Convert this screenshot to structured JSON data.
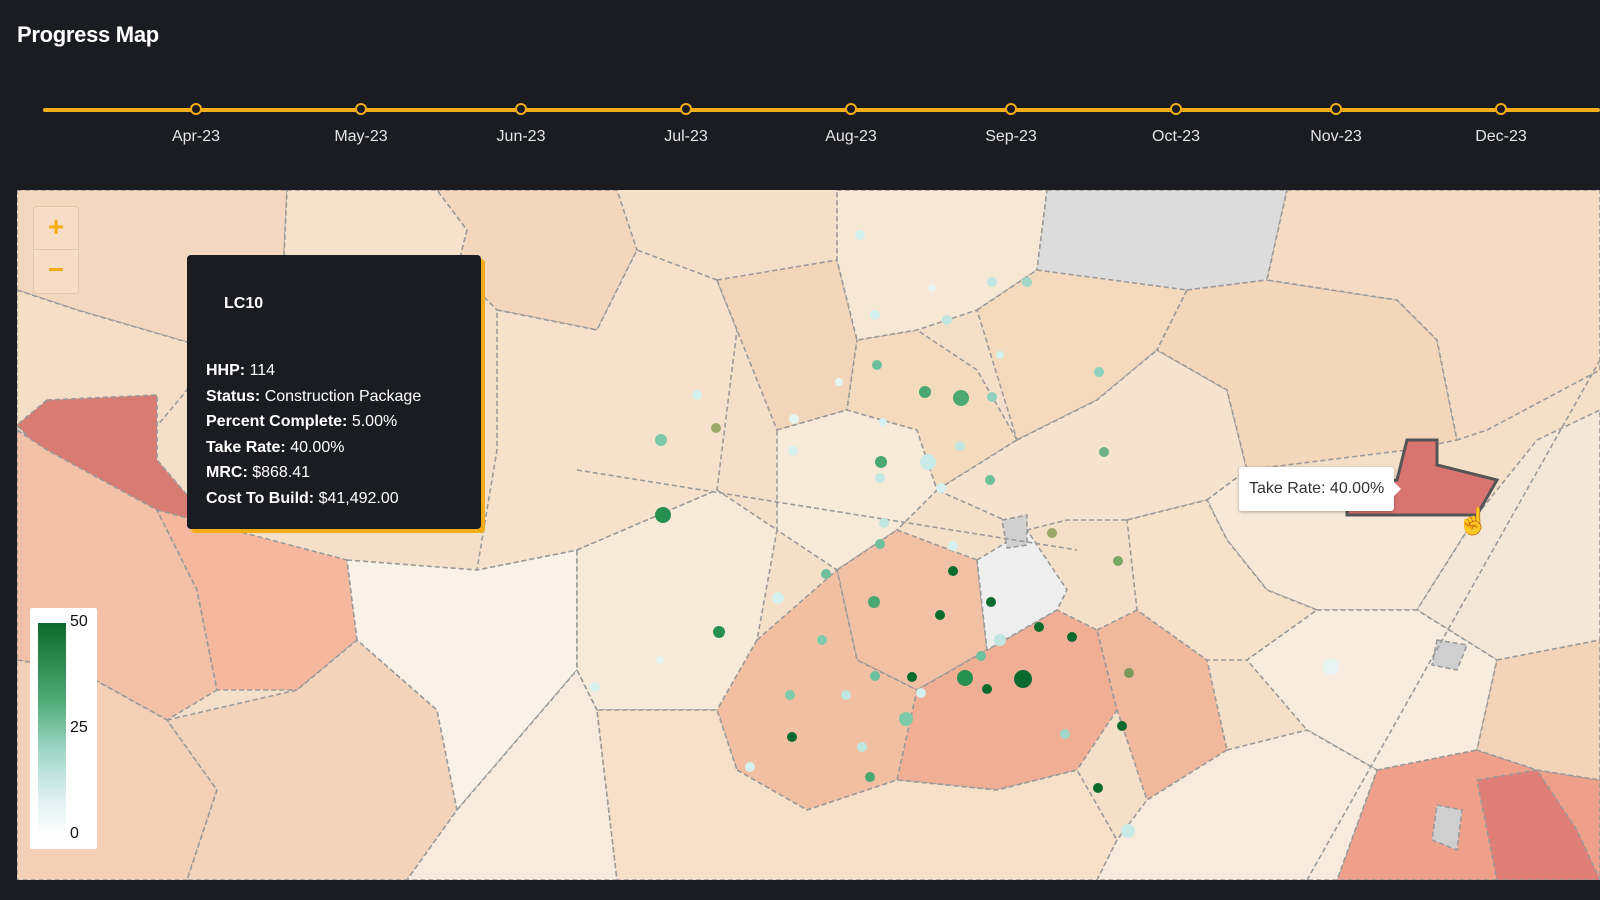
{
  "header": {
    "title": "Progress Map"
  },
  "timeline": {
    "accent_color": "#f2ad19",
    "months": [
      "Apr-23",
      "May-23",
      "Jun-23",
      "Jul-23",
      "Aug-23",
      "Sep-23",
      "Oct-23",
      "Nov-23",
      "Dec-23"
    ]
  },
  "map": {
    "zoom_in_label": "+",
    "zoom_out_label": "−",
    "popup": {
      "title": "LC10",
      "rows": [
        {
          "label": "HHP:",
          "value": "114"
        },
        {
          "label": "Status:",
          "value": "Construction Package"
        },
        {
          "label": "Percent Complete:",
          "value": "5.00%"
        },
        {
          "label": "Take Rate:",
          "value": "40.00%"
        },
        {
          "label": "MRC:",
          "value": "$868.41"
        },
        {
          "label": "Cost To Build:",
          "value": "$41,492.00"
        }
      ]
    },
    "hover_tooltip": "Take Rate: 40.00%",
    "legend": {
      "max": "50",
      "mid": "25",
      "min": "0"
    },
    "colors": {
      "background_dark": "#1a1c21",
      "region_light": "#f3dcc4",
      "region_mid": "#f0b69c",
      "region_high": "#d97470",
      "region_none": "#d9d9d9",
      "dot_high": "#0b6b2e",
      "dot_low": "#c8ebe8"
    }
  }
}
